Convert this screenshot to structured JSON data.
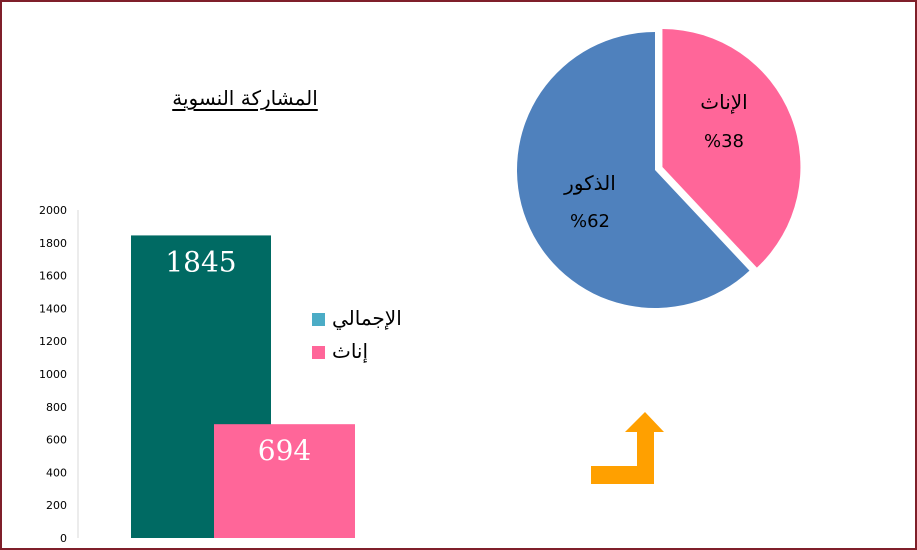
{
  "chart_data": [
    {
      "type": "bar",
      "title": "المشاركة النسوية",
      "ylim": [
        0,
        2000
      ],
      "yticks": [
        0,
        200,
        400,
        600,
        800,
        1000,
        1200,
        1400,
        1600,
        1800,
        2000
      ],
      "grid": false,
      "legend_position": "right",
      "series": [
        {
          "name": "الإجمالي",
          "value": 1845,
          "value_label": "1845",
          "color": "#006a63",
          "legend_color": "#4bacc6"
        },
        {
          "name": "إناث",
          "value": 694,
          "value_label": "694",
          "color": "#ff6699",
          "legend_color": "#ff6699"
        }
      ]
    },
    {
      "type": "pie",
      "slices": [
        {
          "name": "الإناث",
          "value": 38,
          "label": "%38",
          "color": "#ff6699",
          "exploded": true
        },
        {
          "name": "الذكور",
          "value": 62,
          "label": "%62",
          "color": "#4f81bd",
          "exploded": false
        }
      ]
    }
  ],
  "arrow": {
    "color": "#ffa000",
    "icon": "bent-arrow-up-icon"
  }
}
